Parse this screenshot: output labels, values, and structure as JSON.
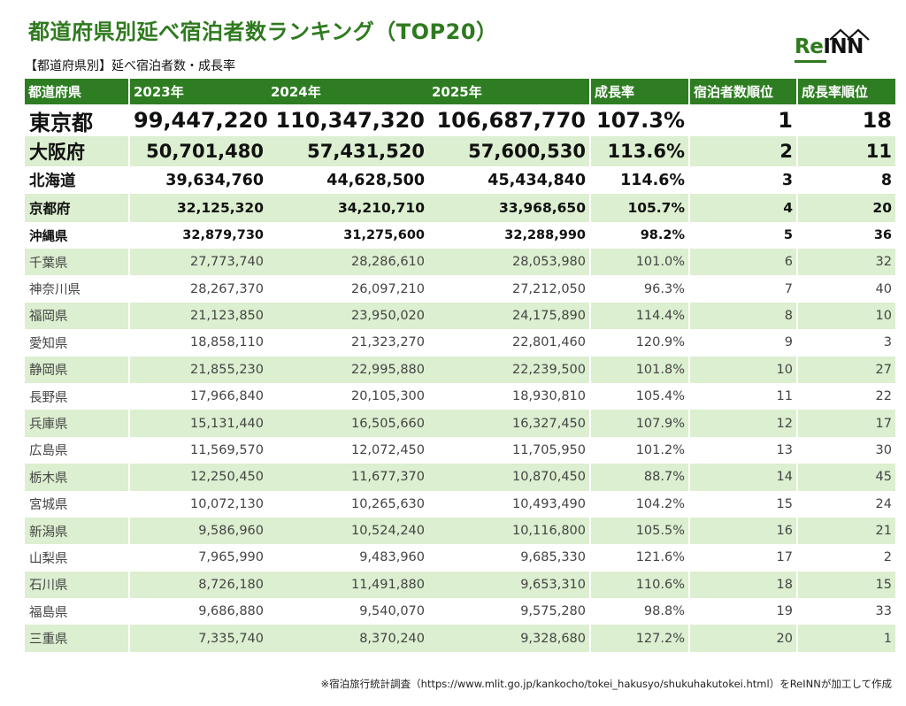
{
  "title": "都道府県別延べ宿泊者数ランキング（TOP20）",
  "subtitle": "【都道府県別】延べ宿泊者数・成長率",
  "logo": {
    "re": "Re",
    "inn": "INN",
    "brand_color": "#2f7a1f"
  },
  "table": {
    "headers": {
      "prefecture": "都道府県",
      "y2023": "2023年",
      "y2024": "2024年",
      "y2025": "2025年",
      "growth": "成長率",
      "guest_rank": "宿泊者数順位",
      "growth_rank": "成長率順位"
    },
    "rows": [
      {
        "pref": "東京都",
        "y2023": "99,447,220",
        "y2024": "110,347,320",
        "y2025": "106,687,770",
        "growth": "107.3%",
        "guest_rank": "1",
        "growth_rank": "18"
      },
      {
        "pref": "大阪府",
        "y2023": "50,701,480",
        "y2024": "57,431,520",
        "y2025": "57,600,530",
        "growth": "113.6%",
        "guest_rank": "2",
        "growth_rank": "11"
      },
      {
        "pref": "北海道",
        "y2023": "39,634,760",
        "y2024": "44,628,500",
        "y2025": "45,434,840",
        "growth": "114.6%",
        "guest_rank": "3",
        "growth_rank": "8"
      },
      {
        "pref": "京都府",
        "y2023": "32,125,320",
        "y2024": "34,210,710",
        "y2025": "33,968,650",
        "growth": "105.7%",
        "guest_rank": "4",
        "growth_rank": "20"
      },
      {
        "pref": "沖縄県",
        "y2023": "32,879,730",
        "y2024": "31,275,600",
        "y2025": "32,288,990",
        "growth": "98.2%",
        "guest_rank": "5",
        "growth_rank": "36"
      },
      {
        "pref": "千葉県",
        "y2023": "27,773,740",
        "y2024": "28,286,610",
        "y2025": "28,053,980",
        "growth": "101.0%",
        "guest_rank": "6",
        "growth_rank": "32"
      },
      {
        "pref": "神奈川県",
        "y2023": "28,267,370",
        "y2024": "26,097,210",
        "y2025": "27,212,050",
        "growth": "96.3%",
        "guest_rank": "7",
        "growth_rank": "40"
      },
      {
        "pref": "福岡県",
        "y2023": "21,123,850",
        "y2024": "23,950,020",
        "y2025": "24,175,890",
        "growth": "114.4%",
        "guest_rank": "8",
        "growth_rank": "10"
      },
      {
        "pref": "愛知県",
        "y2023": "18,858,110",
        "y2024": "21,323,270",
        "y2025": "22,801,460",
        "growth": "120.9%",
        "guest_rank": "9",
        "growth_rank": "3"
      },
      {
        "pref": "静岡県",
        "y2023": "21,855,230",
        "y2024": "22,995,880",
        "y2025": "22,239,500",
        "growth": "101.8%",
        "guest_rank": "10",
        "growth_rank": "27"
      },
      {
        "pref": "長野県",
        "y2023": "17,966,840",
        "y2024": "20,105,300",
        "y2025": "18,930,810",
        "growth": "105.4%",
        "guest_rank": "11",
        "growth_rank": "22"
      },
      {
        "pref": "兵庫県",
        "y2023": "15,131,440",
        "y2024": "16,505,660",
        "y2025": "16,327,450",
        "growth": "107.9%",
        "guest_rank": "12",
        "growth_rank": "17"
      },
      {
        "pref": "広島県",
        "y2023": "11,569,570",
        "y2024": "12,072,450",
        "y2025": "11,705,950",
        "growth": "101.2%",
        "guest_rank": "13",
        "growth_rank": "30"
      },
      {
        "pref": "栃木県",
        "y2023": "12,250,450",
        "y2024": "11,677,370",
        "y2025": "10,870,450",
        "growth": "88.7%",
        "guest_rank": "14",
        "growth_rank": "45"
      },
      {
        "pref": "宮城県",
        "y2023": "10,072,130",
        "y2024": "10,265,630",
        "y2025": "10,493,490",
        "growth": "104.2%",
        "guest_rank": "15",
        "growth_rank": "24"
      },
      {
        "pref": "新潟県",
        "y2023": "9,586,960",
        "y2024": "10,524,240",
        "y2025": "10,116,800",
        "growth": "105.5%",
        "guest_rank": "16",
        "growth_rank": "21"
      },
      {
        "pref": "山梨県",
        "y2023": "7,965,990",
        "y2024": "9,483,960",
        "y2025": "9,685,330",
        "growth": "121.6%",
        "guest_rank": "17",
        "growth_rank": "2"
      },
      {
        "pref": "石川県",
        "y2023": "8,726,180",
        "y2024": "11,491,880",
        "y2025": "9,653,310",
        "growth": "110.6%",
        "guest_rank": "18",
        "growth_rank": "15"
      },
      {
        "pref": "福島県",
        "y2023": "9,686,880",
        "y2024": "9,540,070",
        "y2025": "9,575,280",
        "growth": "98.8%",
        "guest_rank": "19",
        "growth_rank": "33"
      },
      {
        "pref": "三重県",
        "y2023": "7,335,740",
        "y2024": "8,370,240",
        "y2025": "9,328,680",
        "growth": "127.2%",
        "guest_rank": "20",
        "growth_rank": "1"
      }
    ]
  },
  "footnote": "※宿泊旅行統計調査（https://www.mlit.go.jp/kankocho/tokei_hakusyo/shukuhakutokei.html）をReINNが加工して作成"
}
